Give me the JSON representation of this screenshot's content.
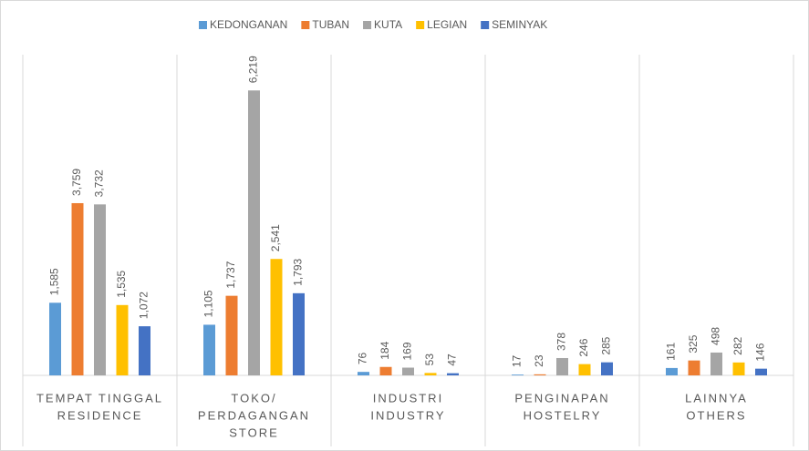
{
  "chart_data": {
    "type": "bar",
    "categories": [
      [
        "TEMPAT TINGGAL",
        "RESIDENCE"
      ],
      [
        "TOKO/",
        "PERDAGANGAN",
        "STORE"
      ],
      [
        "INDUSTRI",
        "INDUSTRY"
      ],
      [
        "PENGINAPAN",
        "HOSTELRY"
      ],
      [
        "LAINNYA",
        "OTHERS"
      ]
    ],
    "series": [
      {
        "name": "KEDONGANAN",
        "color": "#5b9bd5",
        "values": [
          1585,
          1105,
          76,
          17,
          161
        ],
        "value_labels": [
          "1,585",
          "1,105",
          "76",
          "17",
          "161"
        ]
      },
      {
        "name": "TUBAN",
        "color": "#ed7d31",
        "values": [
          3759,
          1737,
          184,
          23,
          325
        ],
        "value_labels": [
          "3,759",
          "1,737",
          "184",
          "23",
          "325"
        ]
      },
      {
        "name": "KUTA",
        "color": "#a5a5a5",
        "values": [
          3732,
          6219,
          169,
          378,
          498
        ],
        "value_labels": [
          "3,732",
          "6,219",
          "169",
          "378",
          "498"
        ]
      },
      {
        "name": "LEGIAN",
        "color": "#ffc000",
        "values": [
          1535,
          2541,
          53,
          246,
          282
        ],
        "value_labels": [
          "1,535",
          "2,541",
          "53",
          "246",
          "282"
        ]
      },
      {
        "name": "SEMINYAK",
        "color": "#4472c4",
        "values": [
          1072,
          1793,
          47,
          285,
          146
        ],
        "value_labels": [
          "1,072",
          "1,793",
          "47",
          "285",
          "146"
        ]
      }
    ],
    "ylim": [
      0,
      7000
    ],
    "legend": "top"
  }
}
